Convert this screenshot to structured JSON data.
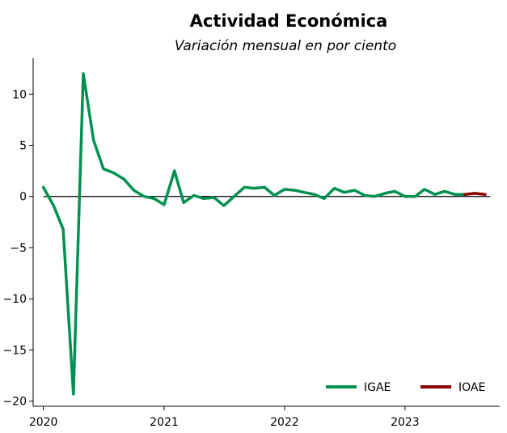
{
  "chart_data": {
    "type": "line",
    "title": "Actividad Económica",
    "subtitle": "Variación mensual en por ciento",
    "xlabel": "",
    "ylabel": "",
    "xlim": [
      "2019-12-01",
      "2023-10-15"
    ],
    "ylim": [
      -20.5,
      13.5
    ],
    "x_ticks": [
      {
        "date": "2020-01-01",
        "label": "2020"
      },
      {
        "date": "2021-01-01",
        "label": "2021"
      },
      {
        "date": "2022-01-01",
        "label": "2022"
      },
      {
        "date": "2023-01-01",
        "label": "2023"
      }
    ],
    "y_ticks": [
      10,
      5,
      0,
      -5,
      -10,
      -15,
      -20
    ],
    "y_tick_labels": [
      "10",
      "5",
      "0",
      "−5",
      "−10",
      "−15",
      "−20"
    ],
    "grid": false,
    "zero_line": true,
    "legend_position": "bottom-right",
    "series": [
      {
        "name": "IGAE",
        "color": "#009150",
        "dates": [
          "2020-01",
          "2020-02",
          "2020-03",
          "2020-04",
          "2020-05",
          "2020-06",
          "2020-07",
          "2020-08",
          "2020-09",
          "2020-10",
          "2020-11",
          "2020-12",
          "2021-01",
          "2021-02",
          "2021-03",
          "2021-04",
          "2021-05",
          "2021-06",
          "2021-07",
          "2021-08",
          "2021-09",
          "2021-10",
          "2021-11",
          "2021-12",
          "2022-01",
          "2022-02",
          "2022-03",
          "2022-04",
          "2022-05",
          "2022-06",
          "2022-07",
          "2022-08",
          "2022-09",
          "2022-10",
          "2022-11",
          "2022-12",
          "2023-01",
          "2023-02",
          "2023-03",
          "2023-04",
          "2023-05",
          "2023-06",
          "2023-07"
        ],
        "values": [
          0.9,
          -0.9,
          -3.2,
          -19.3,
          12.0,
          5.5,
          2.7,
          2.3,
          1.7,
          0.6,
          0.0,
          -0.2,
          -0.8,
          2.5,
          -0.6,
          0.1,
          -0.2,
          -0.1,
          -0.9,
          0.0,
          0.9,
          0.8,
          0.9,
          0.1,
          0.7,
          0.6,
          0.4,
          0.2,
          -0.2,
          0.8,
          0.4,
          0.6,
          0.1,
          0.0,
          0.3,
          0.5,
          0.0,
          0.0,
          0.7,
          0.2,
          0.5,
          0.2,
          0.2
        ]
      },
      {
        "name": "IOAE",
        "color": "#8b0000",
        "dates": [
          "2023-07",
          "2023-08",
          "2023-09"
        ],
        "values": [
          0.2,
          0.3,
          0.2
        ]
      }
    ]
  }
}
